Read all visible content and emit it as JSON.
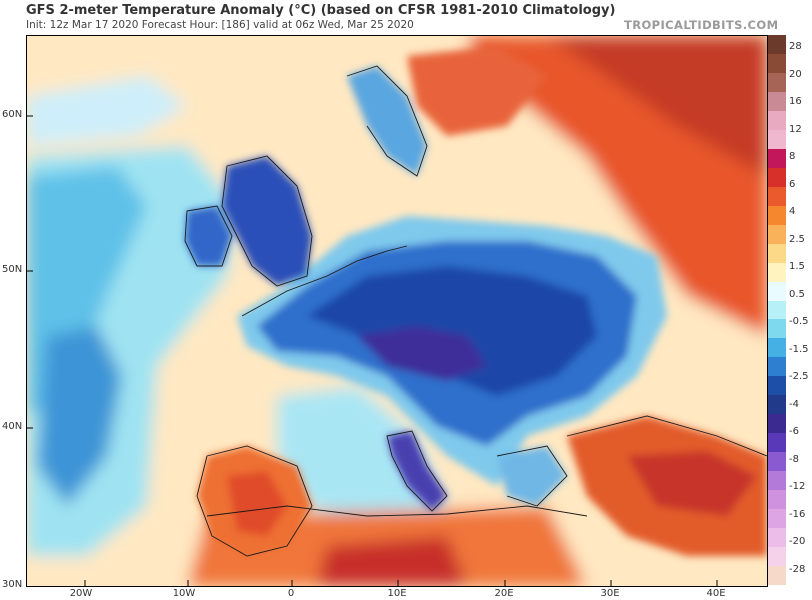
{
  "header": {
    "title": "GFS 2-meter Temperature Anomaly (°C) (based on CFSR 1981-2010 Climatology)",
    "subtitle": "Init: 12z Mar 17 2020   Forecast Hour: [186]   valid at 06z Wed, Mar 25 2020",
    "brand": "TROPICALTIDBITS.COM"
  },
  "map": {
    "lat_labels": [
      "60N",
      "50N",
      "40N",
      "30N"
    ],
    "lon_labels": [
      "20W",
      "10W",
      "0",
      "10E",
      "20E",
      "30E",
      "40E"
    ]
  },
  "colorbar": {
    "labels": [
      "28",
      "20",
      "16",
      "12",
      "8",
      "6",
      "4",
      "2.5",
      "1.5",
      "0.5",
      "-0.5",
      "-1.5",
      "-2.5",
      "-4",
      "-6",
      "-8",
      "-12",
      "-16",
      "-20",
      "-28"
    ],
    "colors": [
      "#6b3a2a",
      "#8a4b36",
      "#a66456",
      "#c98a96",
      "#e7aac0",
      "#f0b8cf",
      "#c2185b",
      "#d7302b",
      "#ea5a2c",
      "#f5882f",
      "#f9b25a",
      "#fbd988",
      "#fff4c0",
      "#eafbff",
      "#b7f0f7",
      "#7fd9ee",
      "#45b0e4",
      "#2f7fd0",
      "#1d4fa8",
      "#213b8a",
      "#3b2a8f",
      "#5a39b8",
      "#8a5ad0",
      "#b37ad9",
      "#cf92de",
      "#dda5e3",
      "#ecbde8",
      "#f5d2ea",
      "#f6d9c9"
    ]
  }
}
